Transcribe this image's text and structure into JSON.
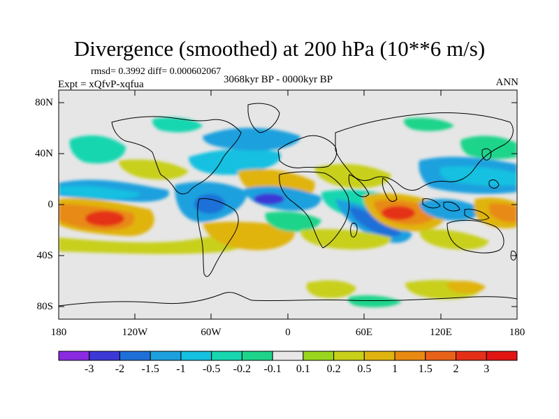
{
  "title": "Divergence (smoothed) at 200 hPa (10**6 m/s)",
  "stats": "rmsd= 0.3992 diff= 0.000602067",
  "period": "3068kyr BP - 0000kyr BP",
  "experiment": "Expt = xQfvP-xqfua",
  "season": "ANN",
  "y_axis_labels": [
    "80N",
    "40N",
    "0",
    "40S",
    "80S"
  ],
  "x_axis_labels": [
    "180",
    "120W",
    "60W",
    "0",
    "60E",
    "120E",
    "180"
  ],
  "colorbar": {
    "labels": [
      "-3",
      "-2",
      "-1.5",
      "-1",
      "-0.5",
      "-0.2",
      "-0.1",
      "0.1",
      "0.2",
      "0.5",
      "1",
      "1.5",
      "2",
      "3"
    ],
    "colors": [
      "#8a2be2",
      "#3b38d6",
      "#1f6fd8",
      "#1ea0de",
      "#16c0e0",
      "#17d6b0",
      "#1ed48a",
      "#e8e8e8",
      "#9ad61e",
      "#c8d01a",
      "#e0b410",
      "#e88a12",
      "#e8621a",
      "#e43018",
      "#e21414"
    ]
  },
  "map": {
    "background": "#e6e6e6",
    "lat_range": [
      -90,
      90
    ],
    "lon_range": [
      -180,
      180
    ]
  }
}
